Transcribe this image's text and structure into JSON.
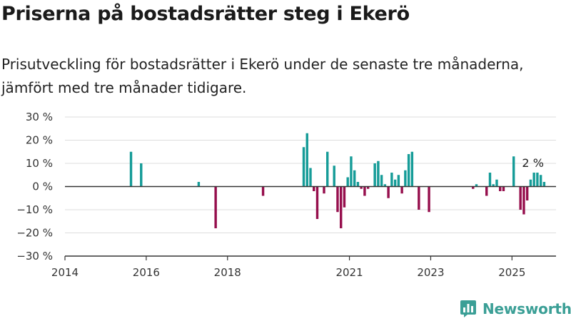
{
  "header": {
    "title": "Priserna på bostadsrätter steg i Ekerö",
    "subtitle": "Prisutveckling för bostadsrätter i Ekerö under de senaste tre månaderna, jämfört med tre månader tidigare."
  },
  "brand": {
    "name": "Newsworthy",
    "icon": "newsworthy-logo-icon"
  },
  "colors": {
    "positive": "#169c98",
    "negative": "#960f4d",
    "grid": "#dddddd",
    "zero_line": "#333333"
  },
  "chart_data": {
    "type": "bar",
    "title": "",
    "xlabel": "",
    "ylabel": "",
    "x_ticks": [
      "2014",
      "2016",
      "2018",
      "2021",
      "2023",
      "2025"
    ],
    "y_ticks": [
      "30 %",
      "20 %",
      "10 %",
      "0 %",
      "−10 %",
      "−20 %",
      "−30 %"
    ],
    "ylim": [
      -30,
      30
    ],
    "xlim": [
      "2014-01",
      "2026-02"
    ],
    "grid": true,
    "annotations": [
      {
        "x": "2025-05",
        "y": 6,
        "text": "2 %"
      }
    ],
    "series": [
      {
        "points": [
          {
            "x": "2015-08",
            "y": 15
          },
          {
            "x": "2015-11",
            "y": 10
          },
          {
            "x": "2017-04",
            "y": 2
          },
          {
            "x": "2017-09",
            "y": -18
          },
          {
            "x": "2018-11",
            "y": -4
          },
          {
            "x": "2019-11",
            "y": 17
          },
          {
            "x": "2019-12",
            "y": 23
          },
          {
            "x": "2020-01",
            "y": 8
          },
          {
            "x": "2020-02",
            "y": -2
          },
          {
            "x": "2020-03",
            "y": -14
          },
          {
            "x": "2020-05",
            "y": -3
          },
          {
            "x": "2020-06",
            "y": 15
          },
          {
            "x": "2020-08",
            "y": 9
          },
          {
            "x": "2020-09",
            "y": -11
          },
          {
            "x": "2020-10",
            "y": -18
          },
          {
            "x": "2020-11",
            "y": -9
          },
          {
            "x": "2020-12",
            "y": 4
          },
          {
            "x": "2021-01",
            "y": 13
          },
          {
            "x": "2021-02",
            "y": 7
          },
          {
            "x": "2021-03",
            "y": 2
          },
          {
            "x": "2021-04",
            "y": -1
          },
          {
            "x": "2021-05",
            "y": -4
          },
          {
            "x": "2021-06",
            "y": -1
          },
          {
            "x": "2021-08",
            "y": 10
          },
          {
            "x": "2021-09",
            "y": 11
          },
          {
            "x": "2021-10",
            "y": 5
          },
          {
            "x": "2021-11",
            "y": 1
          },
          {
            "x": "2021-12",
            "y": -5
          },
          {
            "x": "2022-01",
            "y": 6
          },
          {
            "x": "2022-02",
            "y": 3
          },
          {
            "x": "2022-03",
            "y": 5
          },
          {
            "x": "2022-04",
            "y": -3
          },
          {
            "x": "2022-05",
            "y": 7
          },
          {
            "x": "2022-06",
            "y": 14
          },
          {
            "x": "2022-07",
            "y": 15
          },
          {
            "x": "2022-09",
            "y": -10
          },
          {
            "x": "2022-12",
            "y": -11
          },
          {
            "x": "2024-01",
            "y": -1
          },
          {
            "x": "2024-02",
            "y": 1
          },
          {
            "x": "2024-05",
            "y": -4
          },
          {
            "x": "2024-06",
            "y": 6
          },
          {
            "x": "2024-07",
            "y": 1
          },
          {
            "x": "2024-08",
            "y": 3
          },
          {
            "x": "2024-09",
            "y": -2
          },
          {
            "x": "2024-10",
            "y": -2
          },
          {
            "x": "2025-01",
            "y": 13
          },
          {
            "x": "2025-03",
            "y": -10
          },
          {
            "x": "2025-04",
            "y": -12
          },
          {
            "x": "2025-05",
            "y": -6
          },
          {
            "x": "2025-06",
            "y": 3
          },
          {
            "x": "2025-07",
            "y": 6
          },
          {
            "x": "2025-08",
            "y": 6
          },
          {
            "x": "2025-09",
            "y": 5
          },
          {
            "x": "2025-10",
            "y": 2
          }
        ]
      }
    ]
  }
}
